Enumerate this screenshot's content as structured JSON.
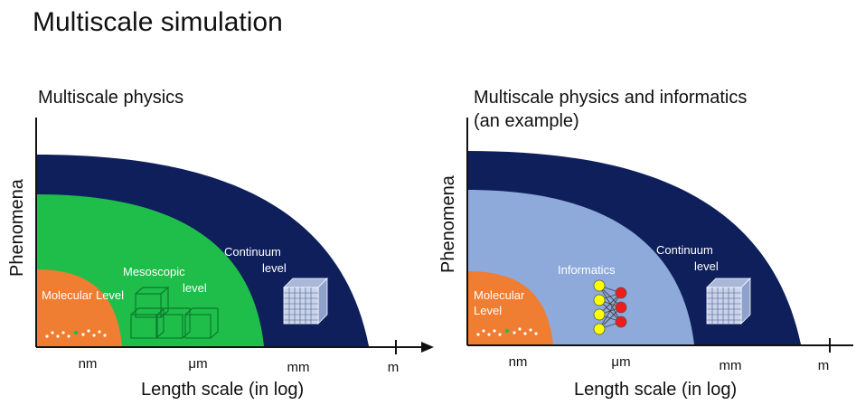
{
  "title": "Multiscale simulation",
  "left": {
    "subtitle": "Multiscale physics",
    "ylabel": "Phenomena",
    "xlabel": "Length scale (in log)",
    "ticks": [
      "nm",
      "μm",
      "mm",
      "m"
    ],
    "levels": {
      "molecular": "Molecular Level",
      "mesoscopic_line1": "Mesoscopic",
      "mesoscopic_line2": "level",
      "continuum_line1": "Continuum",
      "continuum_line2": "level"
    },
    "colors": {
      "continuum": "#0f1f5c",
      "mesoscopic": "#1fbe4a",
      "molecular": "#ef7d32"
    }
  },
  "right": {
    "subtitle_line1": "Multiscale physics and informatics",
    "subtitle_line2": "(an example)",
    "ylabel": "Phenomena",
    "xlabel": "Length scale (in log)",
    "ticks": [
      "nm",
      "μm",
      "mm",
      "m"
    ],
    "levels": {
      "molecular_line1": "Molecular",
      "molecular_line2": "Level",
      "informatics": "Informatics",
      "continuum_line1": "Continuum",
      "continuum_line2": "level"
    },
    "colors": {
      "continuum": "#0f1f5c",
      "informatics": "#8eaadb",
      "molecular": "#ef7d32",
      "node_input": "#ffff00",
      "node_output": "#ee1c1c"
    }
  }
}
